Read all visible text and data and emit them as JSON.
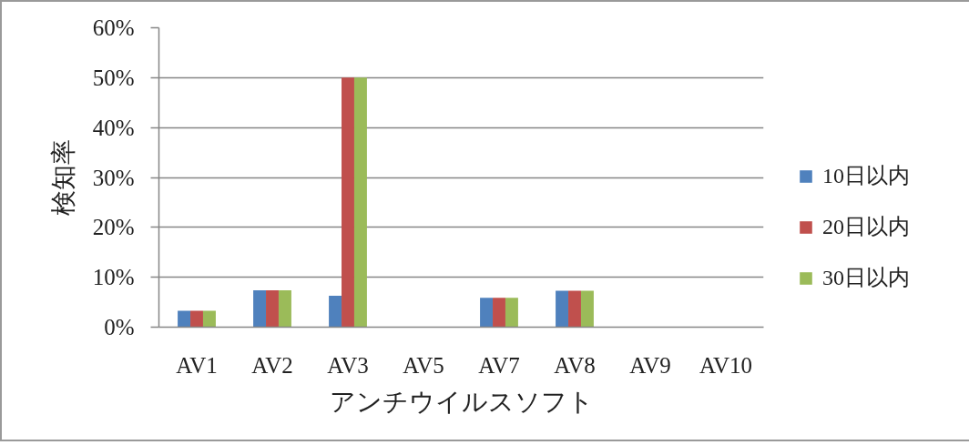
{
  "chart_data": {
    "type": "bar",
    "xlabel": "アンチウイルスソフト",
    "ylabel": "検知率",
    "categories": [
      "AV1",
      "AV2",
      "AV3",
      "AV5",
      "AV7",
      "AV8",
      "AV9",
      "AV10"
    ],
    "series": [
      {
        "name": "10日以内",
        "color": "#4f81bd",
        "values": [
          3.3,
          7.4,
          6.3,
          0,
          5.9,
          7.3,
          0,
          0
        ]
      },
      {
        "name": "20日以内",
        "color": "#c0504d",
        "values": [
          3.3,
          7.4,
          50,
          0,
          5.9,
          7.3,
          0,
          0
        ]
      },
      {
        "name": "30日以内",
        "color": "#9bbb59",
        "values": [
          3.3,
          7.4,
          50,
          0,
          5.9,
          7.3,
          0,
          0
        ]
      }
    ],
    "ylim": [
      0,
      60
    ],
    "yticks": [
      {
        "value": 0,
        "label": "0%"
      },
      {
        "value": 10,
        "label": "10%"
      },
      {
        "value": 20,
        "label": "20%"
      },
      {
        "value": 30,
        "label": "30%"
      },
      {
        "value": 40,
        "label": "40%"
      },
      {
        "value": 50,
        "label": "50%"
      },
      {
        "value": 60,
        "label": "60%"
      }
    ],
    "grid": "y",
    "legend": "right"
  }
}
